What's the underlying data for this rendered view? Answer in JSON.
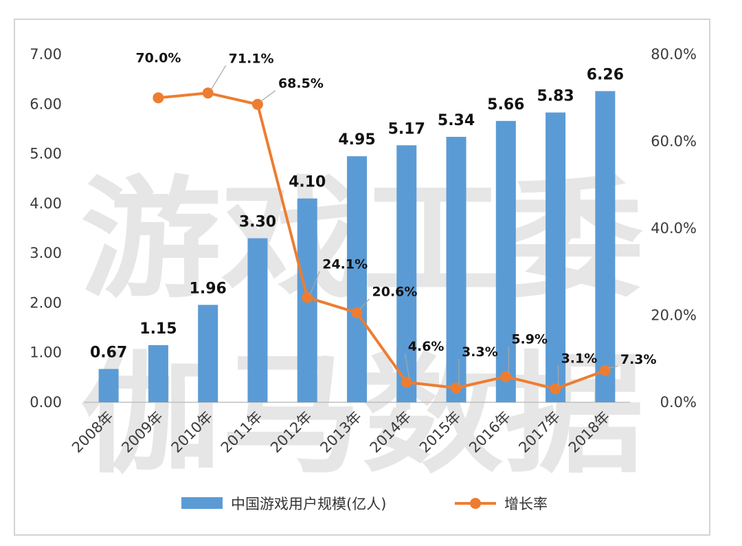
{
  "watermark": {
    "line1": "游戏工委",
    "line2": "伽马数据"
  },
  "legend": {
    "bar_label": "中国游戏用户规模(亿人)",
    "line_label": "增长率"
  },
  "colors": {
    "bar": "#5b9bd5",
    "line": "#ed7d31",
    "axis_text": "#3a3a3a",
    "border": "#d3d3d3"
  },
  "chart_data": {
    "type": "bar",
    "categories": [
      "2008年",
      "2009年",
      "2010年",
      "2011年",
      "2012年",
      "2013年",
      "2014年",
      "2015年",
      "2016年",
      "2017年",
      "2018年"
    ],
    "series": [
      {
        "name": "中国游戏用户规模(亿人)",
        "type": "bar",
        "axis": "left",
        "values": [
          0.67,
          1.15,
          1.96,
          3.3,
          4.1,
          4.95,
          5.17,
          5.34,
          5.66,
          5.83,
          6.26
        ],
        "labels": [
          "0.67",
          "1.15",
          "1.96",
          "3.30",
          "4.10",
          "4.95",
          "5.17",
          "5.34",
          "5.66",
          "5.83",
          "6.26"
        ]
      },
      {
        "name": "增长率",
        "type": "line",
        "axis": "right",
        "values": [
          null,
          70.0,
          71.1,
          68.5,
          24.1,
          20.6,
          4.6,
          3.3,
          5.9,
          3.1,
          7.3
        ],
        "labels": [
          "",
          "70.0%",
          "71.1%",
          "68.5%",
          "24.1%",
          "20.6%",
          "4.6%",
          "3.3%",
          "5.9%",
          "3.1%",
          "7.3%"
        ]
      }
    ],
    "y_left": {
      "range": [
        0,
        7
      ],
      "ticks": [
        "0.00",
        "1.00",
        "2.00",
        "3.00",
        "4.00",
        "5.00",
        "6.00",
        "7.00"
      ]
    },
    "y_right": {
      "range": [
        0,
        80
      ],
      "ticks": [
        "0.0%",
        "20.0%",
        "40.0%",
        "60.0%",
        "80.0%"
      ]
    },
    "grid": false,
    "legend_position": "bottom"
  }
}
